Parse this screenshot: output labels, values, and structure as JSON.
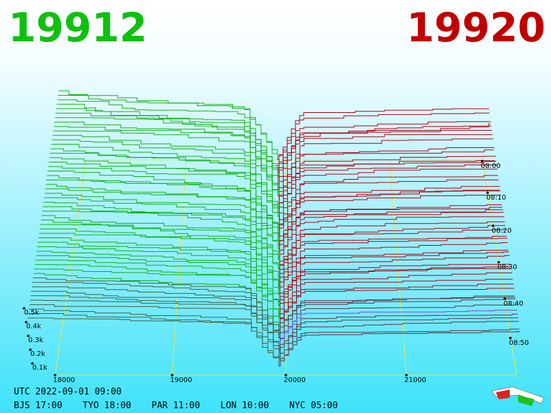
{
  "header": {
    "bid": "19912",
    "ask": "19920"
  },
  "depth_axis": {
    "labels": [
      "0.5k",
      "0.4k",
      "0.3k",
      "0.2k",
      "0.1k"
    ]
  },
  "price_axis": {
    "labels": [
      "18000",
      "19000",
      "20000",
      "21000"
    ]
  },
  "time_axis": {
    "labels": [
      "08:00",
      "08:10",
      "08:20",
      "08:30",
      "08:40",
      "08:50"
    ]
  },
  "clock": {
    "utc": "UTC 2022-09-01 09:00",
    "zones": [
      "BJS 17:00",
      "TYO 18:00",
      "PAR 11:00",
      "LON 10:00",
      "NYC 05:00"
    ]
  }
}
